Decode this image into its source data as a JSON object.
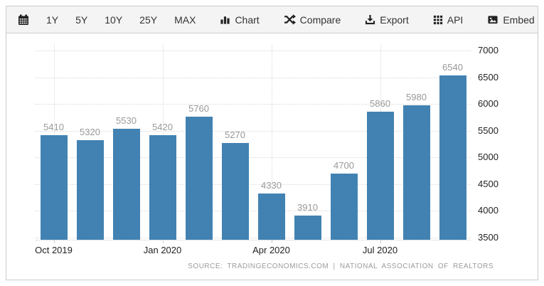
{
  "toolbar": {
    "ranges": [
      "1Y",
      "5Y",
      "10Y",
      "25Y",
      "MAX"
    ],
    "buttons": {
      "calendar": {
        "icon": "calendar-icon"
      },
      "chart": {
        "icon": "bar-chart-icon",
        "label": "Chart"
      },
      "compare": {
        "icon": "shuffle-icon",
        "label": "Compare"
      },
      "export": {
        "icon": "download-icon",
        "label": "Export"
      },
      "api": {
        "icon": "grid-icon",
        "label": "API"
      },
      "embed": {
        "icon": "image-icon",
        "label": "Embed"
      }
    }
  },
  "chart_data": {
    "type": "bar",
    "values": [
      5410,
      5320,
      5530,
      5420,
      5760,
      5270,
      4330,
      3910,
      4700,
      5860,
      5980,
      6540
    ],
    "x_ticks": [
      {
        "index": 0,
        "label": "Oct 2019"
      },
      {
        "index": 3,
        "label": "Jan 2020"
      },
      {
        "index": 6,
        "label": "Apr 2020"
      },
      {
        "index": 9,
        "label": "Jul 2020"
      }
    ],
    "y_ticks": [
      7000,
      6500,
      6000,
      5500,
      5000,
      4500,
      4000,
      3500
    ],
    "ylim": [
      3500,
      7000
    ],
    "y_axis_position": "right",
    "grid": "dotted",
    "legend": "none",
    "title": "",
    "xlabel": "",
    "ylabel": "",
    "bar_color": "#4282b2",
    "grid_color": "#d9d9d9",
    "value_label_color": "#999999",
    "axis_label_color": "#222222",
    "source": "SOURCE: TRADINGECONOMICS.COM | NATIONAL ASSOCIATION OF REALTORS"
  }
}
